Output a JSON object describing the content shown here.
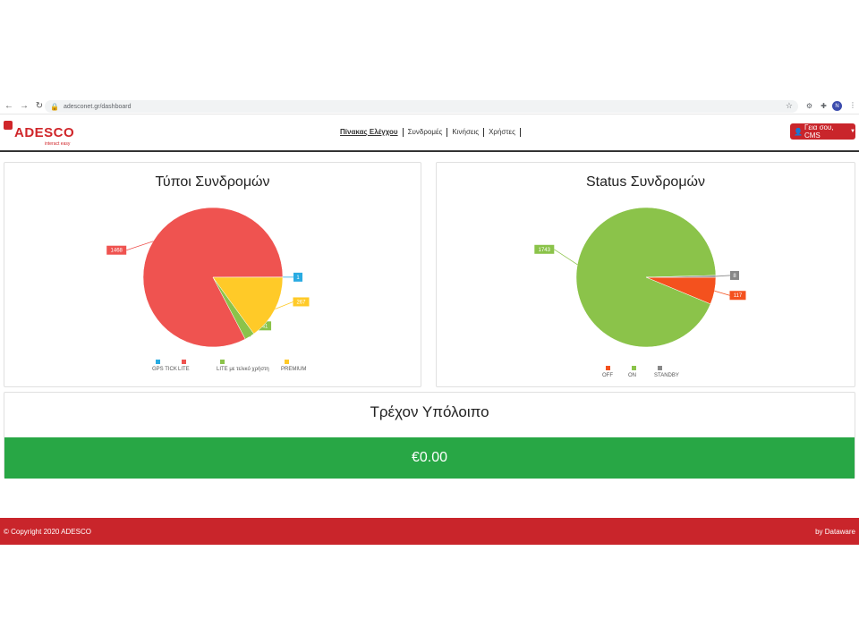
{
  "browser": {
    "url": "adesconet.gr/dashboard",
    "profile_initial": "N"
  },
  "header": {
    "logo_text": "ADESCO",
    "logo_tagline": "interact easy",
    "nav": [
      "Πίνακας Ελέγχου",
      "Συνδρομές",
      "Κινήσεις",
      "Χρήστες"
    ],
    "active_nav": "Πίνακας Ελέγχου",
    "user_button": "Γεια σου, CMS"
  },
  "colors": {
    "brand_red": "#c9252b",
    "balance_green": "#28a745",
    "gps_tick": "#29abe2",
    "lite": "#ef5350",
    "lite_end_user": "#8bc34a",
    "premium": "#ffca28",
    "off": "#f4511e",
    "on": "#8bc34a",
    "standby": "#888888"
  },
  "chart_data": [
    {
      "type": "pie",
      "title": "Τύποι Συνδρομών",
      "categories": [
        "GPS TICK",
        "LITE",
        "LITE με τελικό χρήστη",
        "PREMIUM"
      ],
      "values": [
        1,
        1468,
        41,
        267
      ],
      "colors": [
        "#29abe2",
        "#ef5350",
        "#8bc34a",
        "#ffca28"
      ],
      "legend": "bottom"
    },
    {
      "type": "pie",
      "title": "Status Συνδρομών",
      "categories": [
        "OFF",
        "ON",
        "STANDBY"
      ],
      "values": [
        117,
        1743,
        8
      ],
      "colors": [
        "#f4511e",
        "#8bc34a",
        "#888888"
      ],
      "legend": "bottom"
    }
  ],
  "balance": {
    "title": "Τρέχον Υπόλοιπο",
    "value": "€0.00"
  },
  "footer": {
    "copyright": "© Copyright 2020 ADESCO",
    "credit": "by Dataware"
  }
}
